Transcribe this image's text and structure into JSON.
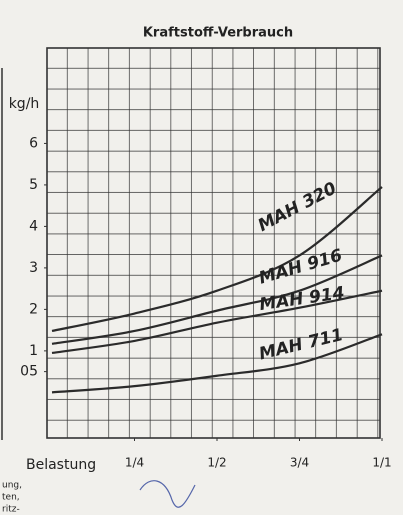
{
  "chart_data": {
    "type": "line",
    "title": "Kraftstoff-Verbrauch",
    "y_label": "kg/h",
    "x_label": "Belastung",
    "x": [
      0,
      0.25,
      0.5,
      0.75,
      1
    ],
    "xlim": [
      0,
      1
    ],
    "xticks": [
      {
        "value": 0.25,
        "label": "1/4"
      },
      {
        "value": 0.5,
        "label": "1/2"
      },
      {
        "value": 0.75,
        "label": "3/4"
      },
      {
        "value": 1,
        "label": "1/1"
      }
    ],
    "ylim": [
      -1.1,
      8.3
    ],
    "yticks": [
      {
        "value": 0.5,
        "label": "05"
      },
      1,
      2,
      3,
      4,
      5,
      6
    ],
    "color": "#2b2b2b",
    "series": [
      {
        "name": "MAH 320",
        "values": [
          1.48,
          1.9,
          2.45,
          3.3,
          4.95
        ]
      },
      {
        "name": "MAH 916",
        "values": [
          1.17,
          1.48,
          1.97,
          2.45,
          3.3
        ]
      },
      {
        "name": "MAH 914",
        "values": [
          0.95,
          1.24,
          1.68,
          2.04,
          2.45
        ]
      },
      {
        "name": "MAH 711",
        "values": [
          0,
          0.15,
          0.4,
          0.7,
          1.4
        ]
      }
    ],
    "margin_text": [
      "ung,",
      "ten,",
      "ritz-"
    ]
  }
}
